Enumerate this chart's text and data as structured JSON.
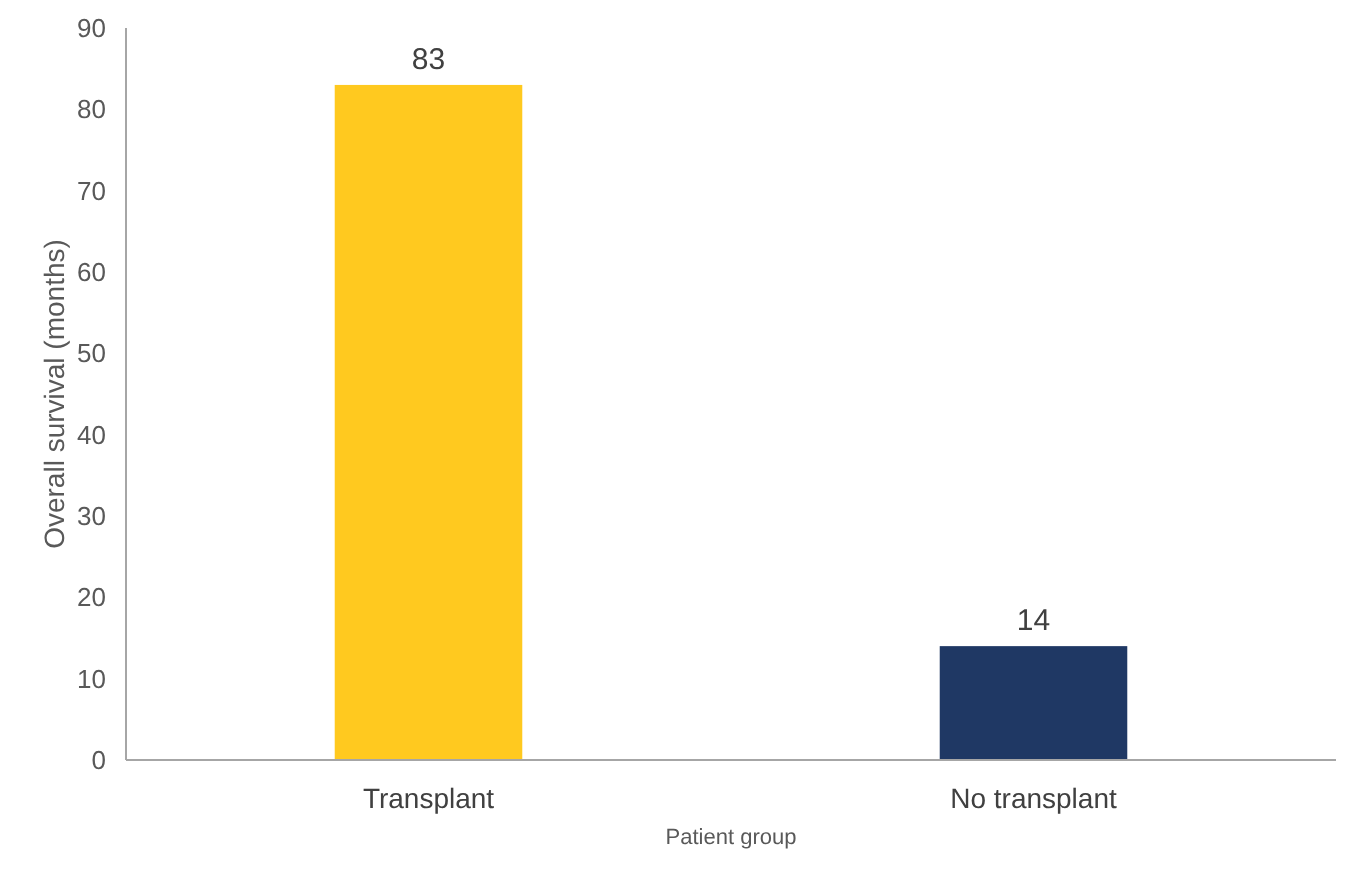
{
  "chart_data": {
    "type": "bar",
    "xlabel": "Patient group",
    "ylabel": "Overall survival (months)",
    "categories": [
      "Transplant",
      "No transplant"
    ],
    "values": [
      83,
      14
    ],
    "colors": [
      "#ffc91f",
      "#1f3864"
    ],
    "ylim": [
      0,
      90
    ],
    "yticks": [
      0,
      10,
      20,
      30,
      40,
      50,
      60,
      70,
      80,
      90
    ],
    "grid": false,
    "data_labels": true
  }
}
